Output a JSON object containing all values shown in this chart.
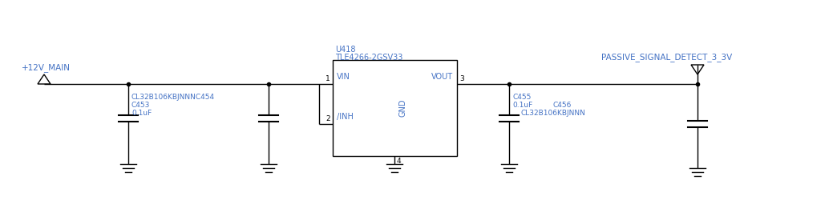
{
  "bg_color": "#ffffff",
  "line_color": "#000000",
  "text_color_blue": "#4472c4",
  "text_color_black": "#000000",
  "figsize": [
    10.39,
    2.5
  ],
  "dpi": 100,
  "power_label_in": "+12V_MAIN",
  "power_label_out": "PASSIVE_SIGNAL_DETECT_3_3V",
  "ic_label1": "U418",
  "ic_label2": "TLE4266-2GSV33",
  "ic_pin_vin": "VIN",
  "ic_pin_vout": "VOUT",
  "ic_pin_inh": "/INH",
  "ic_pin_gnd": "GND",
  "ic_pin1": "1",
  "ic_pin2": "2",
  "ic_pin3": "3",
  "ic_pin4": "4",
  "cap_c453_name": "CL32B106KBJNNNC454",
  "cap_c453_ref": "C453",
  "cap_c453_val": "0.1uF",
  "cap_c455_ref": "C455",
  "cap_c455_val": "0.1uF",
  "cap_c456_name": "CL32B106KBJNNN",
  "cap_c456_ref": "C456"
}
